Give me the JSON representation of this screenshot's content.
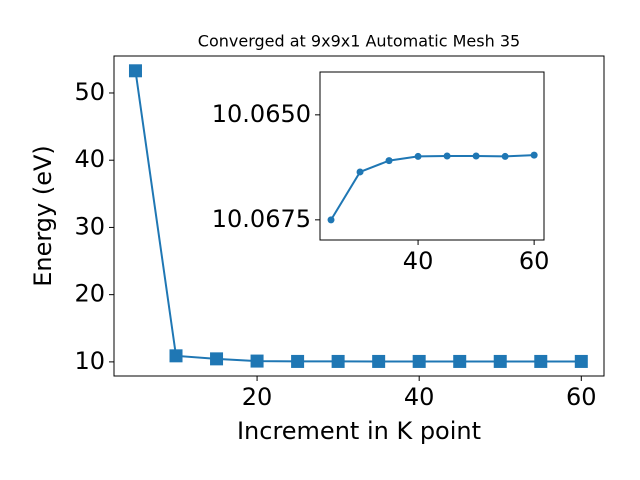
{
  "chart_data": [
    {
      "type": "line",
      "title": "Converged at 9x9x1 Automatic Mesh 35",
      "xlabel": "Increment in K point",
      "ylabel": "Energy (eV)",
      "x": [
        5,
        10,
        15,
        20,
        25,
        30,
        35,
        40,
        45,
        50,
        55,
        60
      ],
      "series": [
        {
          "color": "#1f77b4",
          "marker": "square",
          "values": [
            53.3,
            10.9,
            10.45,
            10.12,
            10.0675,
            10.06636,
            10.06609,
            10.06599,
            10.06598,
            10.06598,
            10.06599,
            10.06596
          ]
        }
      ],
      "xlim": [
        2.35,
        62.8
      ],
      "ylim": [
        7.9,
        55.5
      ],
      "xticks": [
        20,
        40,
        60
      ],
      "yticks": [
        10,
        20,
        30,
        40,
        50
      ]
    },
    {
      "type": "line",
      "x": [
        25,
        30,
        35,
        40,
        45,
        50,
        55,
        60
      ],
      "series": [
        {
          "color": "#1f77b4",
          "marker": "circle",
          "values": [
            10.0675,
            10.06636,
            10.06609,
            10.06599,
            10.06598,
            10.06598,
            10.06599,
            10.06596
          ]
        }
      ],
      "xlim": [
        23.1,
        61.7
      ],
      "ylim": [
        10.06798,
        10.06398
      ],
      "xticks": [
        40,
        60
      ],
      "yticks": [
        {
          "value": 10.065,
          "label": "10.0650"
        },
        {
          "value": 10.0675,
          "label": "10.0675"
        }
      ]
    }
  ]
}
